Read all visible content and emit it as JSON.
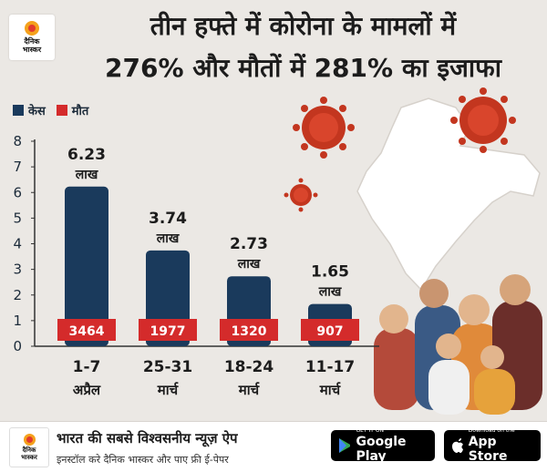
{
  "brand": {
    "logo_line1": "दैनिक",
    "logo_line2": "भास्कर"
  },
  "headline": {
    "line1": "तीन हफ्ते में कोरोना के मामलों में",
    "line2": "276% और मौतों में 281% का इजाफा"
  },
  "legend": {
    "cases": {
      "label": "केस",
      "color": "#1a3a5c"
    },
    "deaths": {
      "label": "मौत",
      "color": "#d42b2b"
    }
  },
  "chart_data": {
    "type": "bar",
    "categories": [
      "1-7 अप्रैल",
      "25-31 मार्च",
      "18-24 मार्च",
      "11-17 मार्च"
    ],
    "category_lines": [
      [
        "1-7",
        "अप्रैल"
      ],
      [
        "25-31",
        "मार्च"
      ],
      [
        "18-24",
        "मार्च"
      ],
      [
        "11-17",
        "मार्च"
      ]
    ],
    "series": [
      {
        "name": "केस",
        "values": [
          6.23,
          3.74,
          2.73,
          1.65
        ],
        "unit_label": "लाख",
        "color": "#1a3a5c"
      },
      {
        "name": "मौत",
        "values": [
          3464,
          1977,
          1320,
          907
        ],
        "color": "#d42b2b"
      }
    ],
    "ylim": [
      0,
      8
    ],
    "yticks": [
      0,
      1,
      2,
      3,
      4,
      5,
      6,
      7,
      8
    ]
  },
  "footer": {
    "line1": "भारत की सबसे विश्वसनीय न्यूज़ ऐप",
    "line2": "इनस्टॉल करे दैनिक भास्कर और पाए फ्री ई-पेपर",
    "google_small": "GET IT ON",
    "google_big": "Google Play",
    "apple_small": "Download on the",
    "apple_big": "App Store"
  }
}
